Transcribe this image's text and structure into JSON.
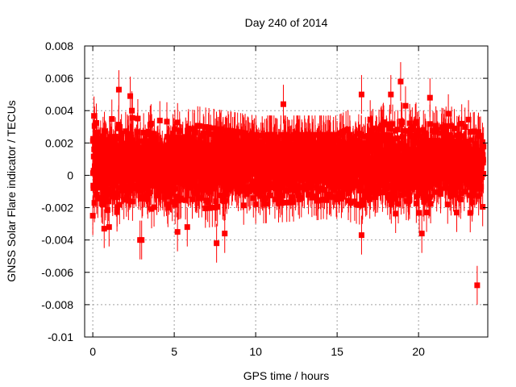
{
  "chart_data": {
    "type": "scatter",
    "title": "Day 240 of 2014",
    "xlabel": "GPS time / hours",
    "ylabel": "GNSS Solar Flare indicator / TECUs",
    "xlim": [
      -0.5,
      24.25
    ],
    "ylim": [
      -0.01,
      0.008
    ],
    "xticks": [
      0,
      5,
      10,
      15,
      20
    ],
    "xtick_labels": [
      "0",
      "5",
      "10",
      "15",
      "20"
    ],
    "yticks": [
      -0.01,
      -0.008,
      -0.006,
      -0.004,
      -0.002,
      0,
      0.002,
      0.004,
      0.006,
      0.008
    ],
    "ytick_labels": [
      "-0.01",
      "-0.008",
      "-0.006",
      "-0.004",
      "-0.002",
      "0",
      "0.002",
      "0.004",
      "0.006",
      "0.008"
    ],
    "grid": true,
    "series": [
      {
        "name": "solar flare indicator",
        "color": "#ff0000",
        "marker": "square",
        "error_bars": true,
        "error_bar_halfwidth": 0.0012,
        "sampling_interval_hours": 0.0083,
        "time_range_hours": [
          0,
          23.99
        ],
        "typical_mean": 0.0007,
        "typical_spread": 0.0011,
        "noise_envelope": [
          {
            "x": 0,
            "lower": -0.0025,
            "upper": 0.0038
          },
          {
            "x": 2,
            "lower": -0.0022,
            "upper": 0.0036
          },
          {
            "x": 5,
            "lower": -0.0022,
            "upper": 0.0033
          },
          {
            "x": 10,
            "lower": -0.0018,
            "upper": 0.0025
          },
          {
            "x": 15,
            "lower": -0.0015,
            "upper": 0.0025
          },
          {
            "x": 17,
            "lower": -0.002,
            "upper": 0.0035
          },
          {
            "x": 19,
            "lower": -0.0025,
            "upper": 0.004
          },
          {
            "x": 22,
            "lower": -0.0025,
            "upper": 0.0038
          },
          {
            "x": 24,
            "lower": -0.0022,
            "upper": 0.0036
          }
        ],
        "outliers": [
          {
            "x": 0.7,
            "y": -0.0033
          },
          {
            "x": 1.0,
            "y": -0.0032
          },
          {
            "x": 1.6,
            "y": 0.0053
          },
          {
            "x": 2.3,
            "y": 0.0049
          },
          {
            "x": 2.4,
            "y": 0.004
          },
          {
            "x": 2.9,
            "y": -0.004
          },
          {
            "x": 3.0,
            "y": -0.004
          },
          {
            "x": 5.2,
            "y": -0.0035
          },
          {
            "x": 5.8,
            "y": -0.0032
          },
          {
            "x": 7.6,
            "y": -0.0042
          },
          {
            "x": 8.1,
            "y": -0.0036
          },
          {
            "x": 11.7,
            "y": 0.0044
          },
          {
            "x": 16.5,
            "y": -0.0037
          },
          {
            "x": 16.5,
            "y": 0.005
          },
          {
            "x": 18.3,
            "y": 0.005
          },
          {
            "x": 18.9,
            "y": 0.0058
          },
          {
            "x": 19.2,
            "y": 0.0043
          },
          {
            "x": 20.2,
            "y": -0.0036
          },
          {
            "x": 20.7,
            "y": 0.0048
          },
          {
            "x": 23.6,
            "y": -0.0068
          }
        ]
      }
    ]
  }
}
